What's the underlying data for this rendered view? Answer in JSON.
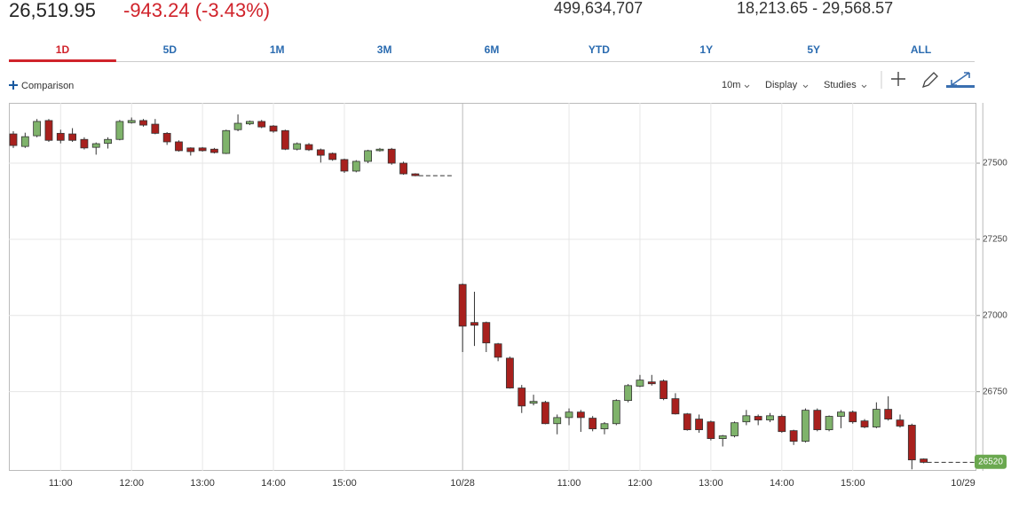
{
  "quote": {
    "price": "26,519.95",
    "change": "-943.24 (-3.43%)",
    "volume": "499,634,707",
    "range": "18,213.65 - 29,568.57"
  },
  "tabs": [
    "1D",
    "5D",
    "1M",
    "3M",
    "6M",
    "YTD",
    "1Y",
    "5Y",
    "ALL"
  ],
  "toolbar": {
    "comparison": "Comparison",
    "interval": "10m",
    "display": "Display",
    "studies": "Studies"
  },
  "chart_data": {
    "type": "candlestick",
    "categories": [
      null,
      null,
      null,
      null,
      "11:00",
      null,
      null,
      null,
      null,
      null,
      "12:00",
      null,
      null,
      null,
      null,
      null,
      "13:00",
      null,
      null,
      null,
      null,
      null,
      "14:00",
      null,
      null,
      null,
      null,
      null,
      "15:00",
      null,
      null,
      null,
      null,
      null,
      null,
      null,
      null,
      null,
      "10/28",
      null,
      null,
      null,
      null,
      null,
      null,
      null,
      null,
      "11:00",
      null,
      null,
      null,
      null,
      null,
      "12:00",
      null,
      null,
      null,
      null,
      null,
      "13:00",
      null,
      null,
      null,
      null,
      null,
      "14:00",
      null,
      null,
      null,
      null,
      null,
      "15:00",
      null,
      null,
      null,
      null,
      null,
      null,
      null,
      null,
      null,
      null,
      "10/29"
    ],
    "open": [
      27596,
      27555,
      27590,
      27640,
      27598,
      27596,
      27578,
      27552,
      27565,
      27578,
      27633,
      27640,
      27628,
      27598,
      27570,
      27550,
      27550,
      27546,
      27532,
      27610,
      27629,
      27637,
      27622,
      27607,
      27546,
      27561,
      27544,
      27532,
      27512,
      27474,
      27506,
      27541,
      27546,
      27500,
      27465,
      null,
      null,
      null,
      27102,
      26977,
      26977,
      26907,
      26860,
      26762,
      26712,
      26715,
      26645,
      26665,
      26683,
      26663,
      26628,
      26645,
      26721,
      26768,
      26782,
      26785,
      26727,
      26677,
      26660,
      26651,
      26596,
      26605,
      26651,
      26669,
      26657,
      26669,
      26622,
      26587,
      26689,
      26625,
      26669,
      26683,
      26654,
      26634,
      26692,
      26657,
      26640,
      26529,
      null,
      null,
      null,
      null,
      null
    ],
    "high": [
      27605,
      27600,
      27645,
      27645,
      27610,
      27615,
      27585,
      27568,
      27585,
      27642,
      27650,
      27645,
      27645,
      27602,
      27575,
      27552,
      27553,
      27550,
      27610,
      27660,
      27640,
      27642,
      27625,
      27610,
      27568,
      27566,
      27548,
      27535,
      27515,
      27510,
      27544,
      27550,
      27550,
      27505,
      27467,
      null,
      null,
      null,
      27105,
      27078,
      26980,
      26910,
      26865,
      26772,
      26740,
      26720,
      26675,
      26695,
      26690,
      26670,
      26650,
      26725,
      26775,
      26805,
      26805,
      26790,
      26745,
      26680,
      26675,
      26655,
      26608,
      26652,
      26690,
      26675,
      26680,
      26675,
      26625,
      26695,
      26695,
      26672,
      26690,
      26688,
      26660,
      26715,
      26735,
      26675,
      26645,
      26531,
      null,
      null,
      null,
      null,
      null
    ],
    "low": [
      27550,
      27550,
      27585,
      27570,
      27565,
      27570,
      27545,
      27528,
      27548,
      27575,
      27630,
      27620,
      27595,
      27560,
      27538,
      27525,
      27538,
      27532,
      27530,
      27605,
      27625,
      27615,
      27600,
      27543,
      27542,
      27540,
      27502,
      27508,
      27468,
      27470,
      27500,
      27538,
      27495,
      27462,
      27457,
      null,
      null,
      null,
      26880,
      26900,
      26880,
      26850,
      26760,
      26680,
      26705,
      26643,
      26610,
      26640,
      26618,
      26620,
      26610,
      26640,
      26715,
      26765,
      26770,
      26722,
      26675,
      26622,
      26615,
      26590,
      26570,
      26600,
      26640,
      26640,
      26650,
      26615,
      26575,
      26583,
      26620,
      26620,
      26630,
      26645,
      26630,
      26630,
      26655,
      26632,
      26495,
      26515,
      null,
      null,
      null,
      null,
      null
    ],
    "close": [
      27558,
      27587,
      27637,
      27575,
      27575,
      27575,
      27550,
      27564,
      27578,
      27637,
      27640,
      27625,
      27598,
      27570,
      27541,
      27538,
      27541,
      27535,
      27607,
      27631,
      27637,
      27619,
      27605,
      27546,
      27564,
      27544,
      27526,
      27512,
      27474,
      27506,
      27541,
      27546,
      27500,
      27465,
      27459,
      null,
      null,
      null,
      26965,
      26968,
      26910,
      26863,
      26762,
      26703,
      26718,
      26645,
      26665,
      26683,
      26665,
      26628,
      26645,
      26721,
      26770,
      26788,
      26776,
      26727,
      26677,
      26625,
      26625,
      26596,
      26605,
      26648,
      26671,
      26657,
      26671,
      26619,
      26587,
      26689,
      26625,
      26669,
      26683,
      26651,
      26634,
      26692,
      26660,
      26637,
      26526,
      26518,
      null,
      null,
      null,
      null,
      null
    ],
    "up_color": "#7fb36b",
    "down_color": "#a8201d",
    "last_price": 26520,
    "last_price_color": "#6aa84f",
    "ylim": [
      26490,
      27698
    ],
    "yticks": [
      26750,
      27000,
      27250,
      27500
    ],
    "grid": true
  }
}
